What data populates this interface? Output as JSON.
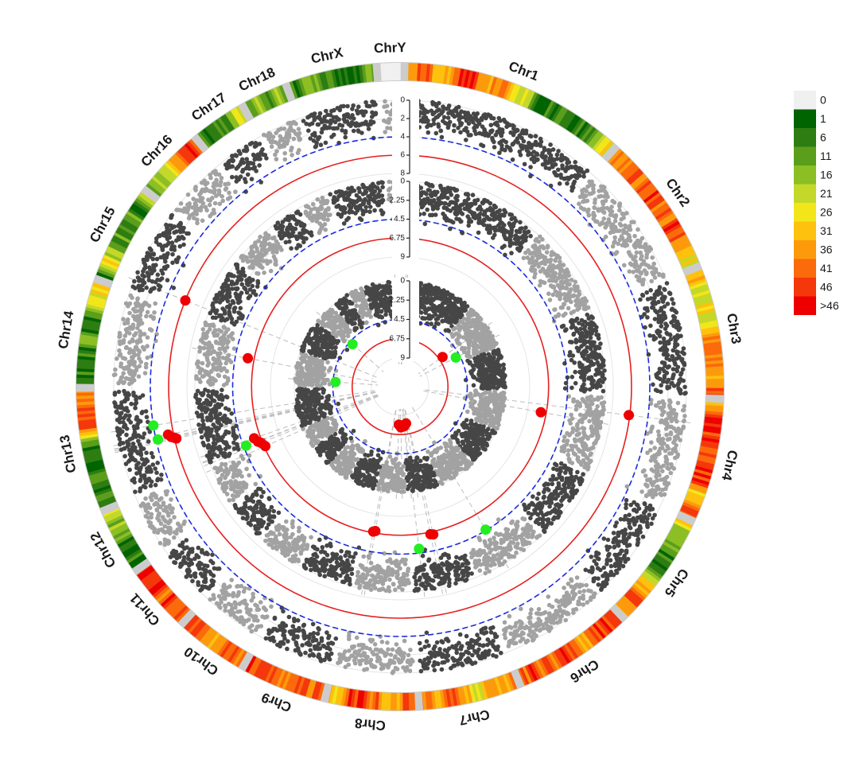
{
  "chart_data": {
    "type": "scatter",
    "subtype": "circular-manhattan",
    "chromosomes": [
      {
        "name": "Chr1",
        "size": 10
      },
      {
        "name": "Chr2",
        "size": 6.2
      },
      {
        "name": "Chr3",
        "size": 5.7
      },
      {
        "name": "Chr4",
        "size": 5.3
      },
      {
        "name": "Chr5",
        "size": 5.0
      },
      {
        "name": "Chr6",
        "size": 5.2
      },
      {
        "name": "Chr7",
        "size": 4.3
      },
      {
        "name": "Chr8",
        "size": 3.9
      },
      {
        "name": "Chr9",
        "size": 3.6
      },
      {
        "name": "Chr10",
        "size": 3.0
      },
      {
        "name": "Chr11",
        "size": 2.8
      },
      {
        "name": "Chr12",
        "size": 2.7
      },
      {
        "name": "Chr13",
        "size": 5.3
      },
      {
        "name": "Chr14",
        "size": 4.6
      },
      {
        "name": "Chr15",
        "size": 4.2
      },
      {
        "name": "Chr16",
        "size": 2.9
      },
      {
        "name": "Chr17",
        "size": 2.2
      },
      {
        "name": "Chr18",
        "size": 1.8
      },
      {
        "name": "ChrX",
        "size": 3.8
      },
      {
        "name": "ChrY",
        "size": 0.9
      }
    ],
    "tracks": [
      {
        "ticks": [
          "0",
          "2",
          "4",
          "6",
          "8"
        ],
        "max": 8,
        "suggestive_threshold": 4,
        "significance_threshold": 6
      },
      {
        "ticks": [
          "0",
          "2.25",
          "4.5",
          "6.75",
          "9"
        ],
        "max": 9,
        "suggestive_threshold": 4.5,
        "significance_threshold": 6.75
      },
      {
        "ticks": [
          "0",
          "2.25",
          "4.5",
          "6.75",
          "9"
        ],
        "max": 9,
        "suggestive_threshold": 4.5,
        "significance_threshold": 6.75
      }
    ],
    "highlighted_snps": [
      {
        "track": 0,
        "chr": "Chr4",
        "pos": 0.2,
        "value": 6.1,
        "class": "significant"
      },
      {
        "track": 0,
        "chr": "Chr13",
        "pos": 0.62,
        "value": 4.0,
        "class": "suggestive"
      },
      {
        "track": 0,
        "chr": "Chr13",
        "pos": 0.46,
        "value": 4.2,
        "class": "suggestive"
      },
      {
        "track": 0,
        "chr": "Chr13",
        "pos": 0.49,
        "value": 5.4,
        "class": "significant"
      },
      {
        "track": 0,
        "chr": "Chr13",
        "pos": 0.455,
        "value": 5.7,
        "class": "significant"
      },
      {
        "track": 0,
        "chr": "Chr13",
        "pos": 0.44,
        "value": 6.0,
        "class": "significant"
      },
      {
        "track": 0,
        "chr": "Chr13",
        "pos": 0.425,
        "value": 6.2,
        "class": "significant"
      },
      {
        "track": 0,
        "chr": "Chr15",
        "pos": 0.1,
        "value": 6.0,
        "class": "significant"
      },
      {
        "track": 1,
        "chr": "Chr4",
        "pos": 0.35,
        "value": 7.4,
        "class": "significant"
      },
      {
        "track": 1,
        "chr": "Chr8",
        "pos": 0.85,
        "value": 6.9,
        "class": "significant"
      },
      {
        "track": 1,
        "chr": "Chr8",
        "pos": 0.8,
        "value": 7.0,
        "class": "significant"
      },
      {
        "track": 1,
        "chr": "Chr7",
        "pos": 0.85,
        "value": 5.0,
        "class": "suggestive"
      },
      {
        "track": 1,
        "chr": "Chr6",
        "pos": 0.6,
        "value": 4.6,
        "class": "suggestive"
      },
      {
        "track": 1,
        "chr": "Chr13",
        "pos": 0.05,
        "value": 4.8,
        "class": "suggestive"
      },
      {
        "track": 1,
        "chr": "Chr13",
        "pos": 0.12,
        "value": 6.0,
        "class": "significant"
      },
      {
        "track": 1,
        "chr": "Chr13",
        "pos": 0.04,
        "value": 6.3,
        "class": "significant"
      },
      {
        "track": 1,
        "chr": "Chr13",
        "pos": 0.0,
        "value": 6.6,
        "class": "significant"
      },
      {
        "track": 1,
        "chr": "Chr12",
        "pos": 0.96,
        "value": 6.9,
        "class": "significant"
      },
      {
        "track": 1,
        "chr": "Chr14",
        "pos": 0.55,
        "value": 6.0,
        "class": "significant"
      },
      {
        "track": 1,
        "chr": "Chr7",
        "pos": 0.5,
        "value": 6.4,
        "class": "significant"
      },
      {
        "track": 1,
        "chr": "Chr7",
        "pos": 0.56,
        "value": 6.5,
        "class": "significant"
      },
      {
        "track": 2,
        "chr": "Chr1",
        "pos": 0.04,
        "value": 4.2,
        "class": "suggestive"
      },
      {
        "track": 2,
        "chr": "Chr1",
        "pos": 0.06,
        "value": 4.9,
        "class": "suggestive"
      },
      {
        "track": 2,
        "chr": "Chr2",
        "pos": 0.5,
        "value": 6.3,
        "class": "significant"
      },
      {
        "track": 2,
        "chr": "Chr2",
        "pos": 0.8,
        "value": 5.0,
        "class": "suggestive"
      },
      {
        "track": 2,
        "chr": "Chr14",
        "pos": 0.2,
        "value": 4.8,
        "class": "suggestive"
      },
      {
        "track": 2,
        "chr": "Chr16",
        "pos": 0.3,
        "value": 4.9,
        "class": "suggestive"
      },
      {
        "track": 2,
        "chr": "ChrY",
        "pos": 0.2,
        "value": 6.8,
        "class": "significant"
      },
      {
        "track": 2,
        "chr": "Chr7",
        "pos": 0.9,
        "value": 7.7,
        "class": "significant"
      },
      {
        "track": 2,
        "chr": "Chr7",
        "pos": 0.7,
        "value": 8.0,
        "class": "significant"
      },
      {
        "track": 2,
        "chr": "Chr8",
        "pos": 0.3,
        "value": 7.9,
        "class": "significant"
      },
      {
        "track": 2,
        "chr": "Chr8",
        "pos": 0.1,
        "value": 7.6,
        "class": "significant"
      }
    ],
    "density_legend": {
      "labels": [
        "0",
        "1",
        "6",
        "11",
        "16",
        "21",
        "26",
        "31",
        "36",
        "41",
        "46",
        ">46"
      ],
      "colors": [
        "#f0f0f0",
        "#006400",
        "#2e7d12",
        "#5b9e1c",
        "#8bbf24",
        "#c4d829",
        "#f2e61a",
        "#fdc10e",
        "#fd9a0c",
        "#fb6a0b",
        "#f5370c",
        "#ee0000"
      ]
    },
    "colors": {
      "odd_chromosome": "#464646",
      "even_chromosome": "#a2a2a2",
      "significant": "#ee0000",
      "suggestive": "#22ee22",
      "significance_line": "#e62020",
      "suggestive_line": "#1a2bdc",
      "grid": "#e4e4e4",
      "guide_line": "#bdbdbd"
    }
  }
}
